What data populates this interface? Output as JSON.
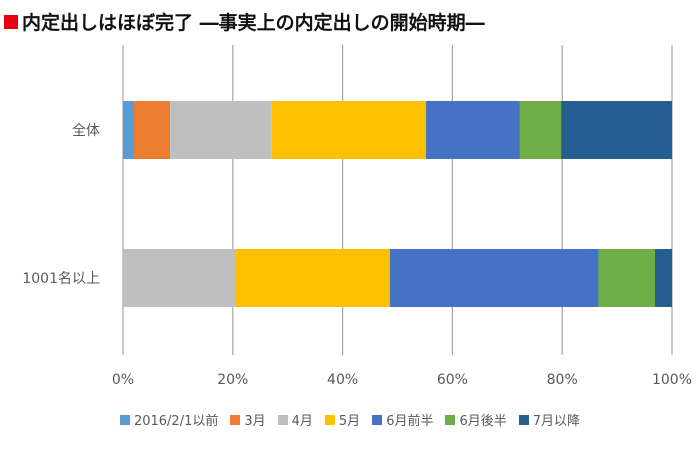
{
  "chart_data": {
    "type": "bar",
    "orientation": "horizontal",
    "stacked": "percent",
    "title": "内定出しはほぼ完了 ―事実上の内定出しの開始時期―",
    "categories": [
      "全体",
      "1001名以上"
    ],
    "series": [
      {
        "name": "2016/2/1以前",
        "color": "#5b9bd5",
        "values": [
          2.0,
          0
        ]
      },
      {
        "name": "3月",
        "color": "#ed7d31",
        "values": [
          6.6,
          0
        ]
      },
      {
        "name": "4月",
        "color": "#bfbfbf",
        "values": [
          18.5,
          20.5
        ]
      },
      {
        "name": "5月",
        "color": "#ffc000",
        "values": [
          28.1,
          28.1
        ]
      },
      {
        "name": "6月前半",
        "color": "#4472c4",
        "values": [
          17.1,
          38.0
        ]
      },
      {
        "name": "6月後半",
        "color": "#70ad47",
        "values": [
          7.5,
          10.3
        ]
      },
      {
        "name": "7月以降",
        "color": "#255e91",
        "values": [
          20.2,
          3.1
        ]
      }
    ],
    "xticks": [
      "0%",
      "20%",
      "40%",
      "60%",
      "80%",
      "100%"
    ],
    "xlim": [
      0,
      100
    ],
    "grid": true,
    "legend": "bottom"
  }
}
